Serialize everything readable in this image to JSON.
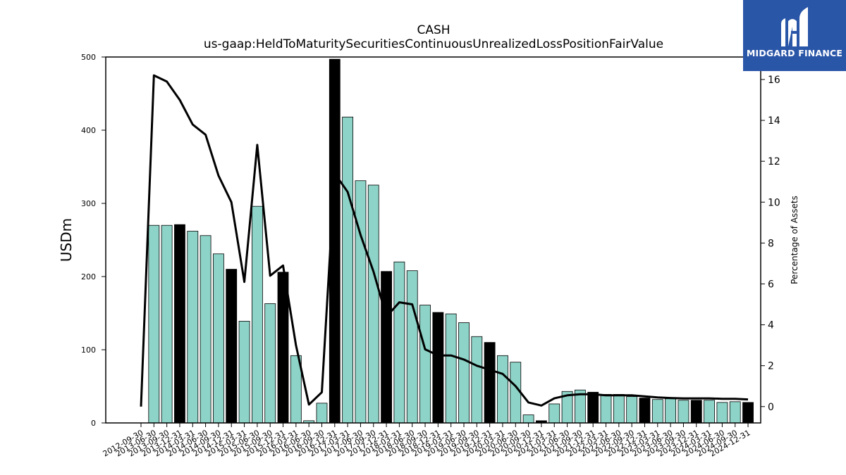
{
  "brand": {
    "name": "MIDGARD FINANCE",
    "bg_color": "#2a56a8"
  },
  "chart_data": {
    "type": "bar",
    "title": "CASH",
    "subtitle": "us-gaap:HeldToMaturitySecuritiesContinuousUnrealizedLossPositionFairValue",
    "ylabel": "USDm",
    "y2label": "Percentage of Assets",
    "ylim": [
      0,
      500
    ],
    "y2lim": [
      -0.8,
      17.1
    ],
    "yticks": [
      0,
      100,
      200,
      300,
      400,
      500
    ],
    "y2ticks": [
      0,
      2,
      4,
      6,
      8,
      10,
      12,
      14,
      16
    ],
    "colors": {
      "bar": "#8dd3c7",
      "bar_q4": "#000000",
      "line": "#000000"
    },
    "categories": [
      "2012-09-30",
      "2013-06-30",
      "2013-09-30",
      "2013-12-31",
      "2014-03-31",
      "2014-06-30",
      "2014-09-30",
      "2014-12-31",
      "2015-03-31",
      "2015-06-30",
      "2015-09-30",
      "2015-12-31",
      "2016-03-31",
      "2016-06-30",
      "2016-09-30",
      "2016-12-31",
      "2017-03-31",
      "2017-06-30",
      "2017-09-30",
      "2017-12-31",
      "2018-03-31",
      "2018-06-30",
      "2018-09-30",
      "2018-12-31",
      "2019-03-31",
      "2019-06-30",
      "2019-09-30",
      "2019-12-31",
      "2020-03-31",
      "2020-06-30",
      "2020-09-30",
      "2020-12-31",
      "2021-03-31",
      "2021-06-30",
      "2021-09-30",
      "2021-12-31",
      "2022-03-31",
      "2022-06-30",
      "2022-09-30",
      "2022-12-31",
      "2023-03-31",
      "2023-06-30",
      "2023-09-30",
      "2023-12-31",
      "2024-03-31",
      "2024-06-30",
      "2024-09-30",
      "2024-12-31"
    ],
    "series": [
      {
        "name": "USDm",
        "kind": "bar",
        "values": [
          0,
          270,
          270,
          271,
          262,
          256,
          231,
          210,
          139,
          296,
          163,
          206,
          92,
          3,
          27,
          497,
          418,
          331,
          325,
          207,
          220,
          208,
          161,
          151,
          149,
          137,
          118,
          110,
          92,
          83,
          11,
          3,
          26,
          43,
          45,
          42,
          39,
          39,
          36,
          34,
          32,
          33,
          31,
          31,
          31,
          28,
          29,
          28
        ]
      },
      {
        "name": "Percentage of Assets",
        "kind": "line",
        "values": [
          0,
          16.2,
          15.9,
          15.0,
          13.8,
          13.3,
          11.3,
          10.0,
          6.1,
          12.8,
          6.4,
          6.9,
          3.0,
          0.1,
          0.7,
          11.4,
          10.5,
          8.4,
          6.6,
          4.4,
          5.1,
          5.0,
          2.8,
          2.5,
          2.5,
          2.3,
          2.0,
          1.8,
          1.6,
          1.0,
          0.2,
          0.05,
          0.4,
          0.55,
          0.6,
          0.6,
          0.55,
          0.55,
          0.55,
          0.5,
          0.45,
          0.42,
          0.4,
          0.4,
          0.4,
          0.38,
          0.38,
          0.35
        ]
      }
    ]
  }
}
